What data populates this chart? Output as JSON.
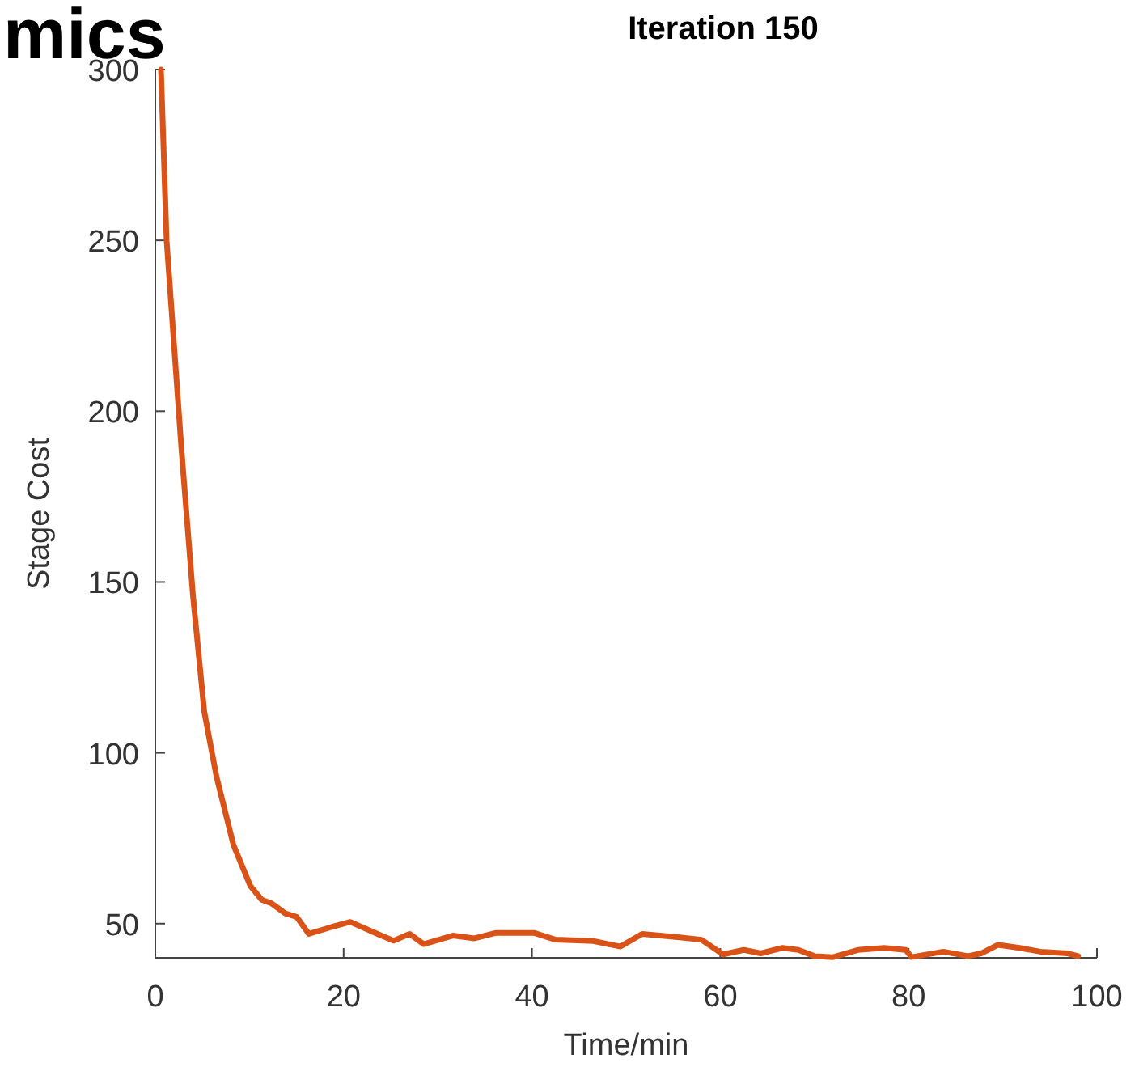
{
  "chart_data": {
    "type": "line",
    "title": "Iteration 150",
    "xlabel": "Time/min",
    "ylabel": "Stage Cost",
    "annotations": [
      "mics"
    ],
    "xlim": [
      0,
      100
    ],
    "ylim": [
      40,
      300
    ],
    "xticks": [
      0,
      20,
      40,
      60,
      80,
      100
    ],
    "yticks": [
      50,
      100,
      150,
      200,
      250,
      300
    ],
    "grid": false,
    "marker": "none",
    "line_style": "solid",
    "series": [
      {
        "color": "#d95319",
        "x": [
          0.6,
          1.2,
          2.8,
          4.0,
          5.2,
          6.5,
          8.3,
          10.1,
          11.3,
          12.3,
          13.8,
          15.0,
          16.3,
          18.7,
          20.7,
          23.6,
          25.3,
          27.0,
          28.5,
          31.6,
          33.9,
          36.2,
          40.2,
          42.5,
          46.5,
          49.4,
          51.7,
          55.7,
          58.0,
          60.3,
          62.5,
          64.3,
          66.6,
          68.3,
          70.0,
          72.0,
          74.6,
          77.4,
          79.7,
          80.3,
          83.7,
          86.3,
          87.7,
          89.5,
          91.8,
          94.0,
          96.9,
          98.0
        ],
        "values": [
          300,
          250,
          188,
          146,
          112,
          93,
          73,
          61,
          57,
          56,
          53,
          52,
          47,
          49,
          50.5,
          47,
          45,
          47,
          44,
          46.5,
          45.7,
          47.3,
          47.3,
          45.3,
          44.9,
          43.3,
          47,
          46,
          45.3,
          41,
          42.3,
          41.3,
          42.9,
          42.3,
          40.5,
          40.2,
          42.3,
          42.9,
          42.3,
          40.2,
          41.8,
          40.5,
          41.3,
          43.8,
          42.9,
          41.8,
          41.3,
          40.5
        ]
      }
    ]
  }
}
